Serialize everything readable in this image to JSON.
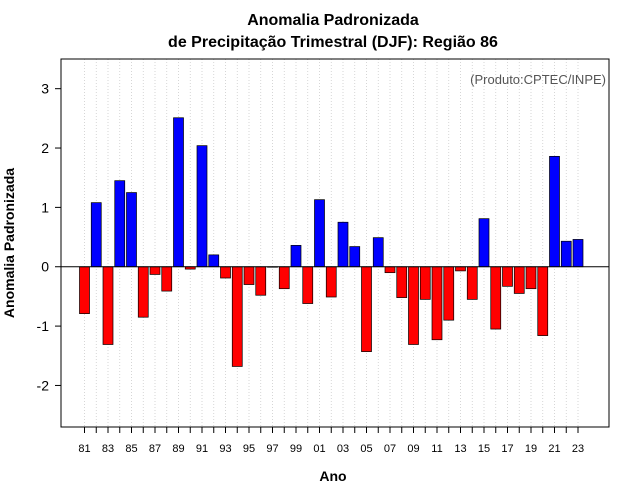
{
  "chart_data": {
    "type": "bar",
    "title": "Anomalia Padronizada",
    "subtitle": "de Precipitação Trimestral (DJF): Região 86",
    "xlabel": "Ano",
    "ylabel": "Anomalia Padronizada",
    "annotation": "(Produto:CPTEC/INPE)",
    "ylim": [
      -2.7,
      3.5
    ],
    "yticks": [
      -2,
      -1,
      0,
      1,
      2,
      3
    ],
    "tick_labels": [
      "81",
      "83",
      "85",
      "87",
      "89",
      "91",
      "93",
      "95",
      "97",
      "99",
      "01",
      "03",
      "05",
      "07",
      "09",
      "11",
      "13",
      "15",
      "17",
      "19",
      "21",
      "23"
    ],
    "categories": [
      "81",
      "82",
      "83",
      "84",
      "85",
      "86",
      "87",
      "88",
      "89",
      "90",
      "91",
      "92",
      "93",
      "94",
      "95",
      "96",
      "97",
      "98",
      "99",
      "00",
      "01",
      "02",
      "03",
      "04",
      "05",
      "06",
      "07",
      "08",
      "09",
      "10",
      "11",
      "12",
      "13",
      "14",
      "15",
      "16",
      "17",
      "18",
      "19",
      "20",
      "21",
      "22",
      "23"
    ],
    "values": [
      -0.79,
      1.08,
      -1.31,
      1.45,
      1.25,
      -0.85,
      -0.13,
      -0.41,
      2.51,
      -0.04,
      2.04,
      0.2,
      -0.19,
      -1.68,
      -0.3,
      -0.48,
      0.0,
      -0.37,
      0.36,
      -0.62,
      1.13,
      -0.51,
      0.75,
      0.34,
      -1.43,
      0.49,
      -0.1,
      -0.52,
      -1.31,
      -0.55,
      -1.23,
      -0.9,
      -0.07,
      -0.55,
      0.81,
      -1.05,
      -0.33,
      -0.45,
      -0.37,
      -1.16,
      1.86,
      0.43,
      0.46
    ],
    "positive_color": "#0000ff",
    "negative_color": "#ff0000",
    "grid": "vertical dotted",
    "zero_line": true
  }
}
